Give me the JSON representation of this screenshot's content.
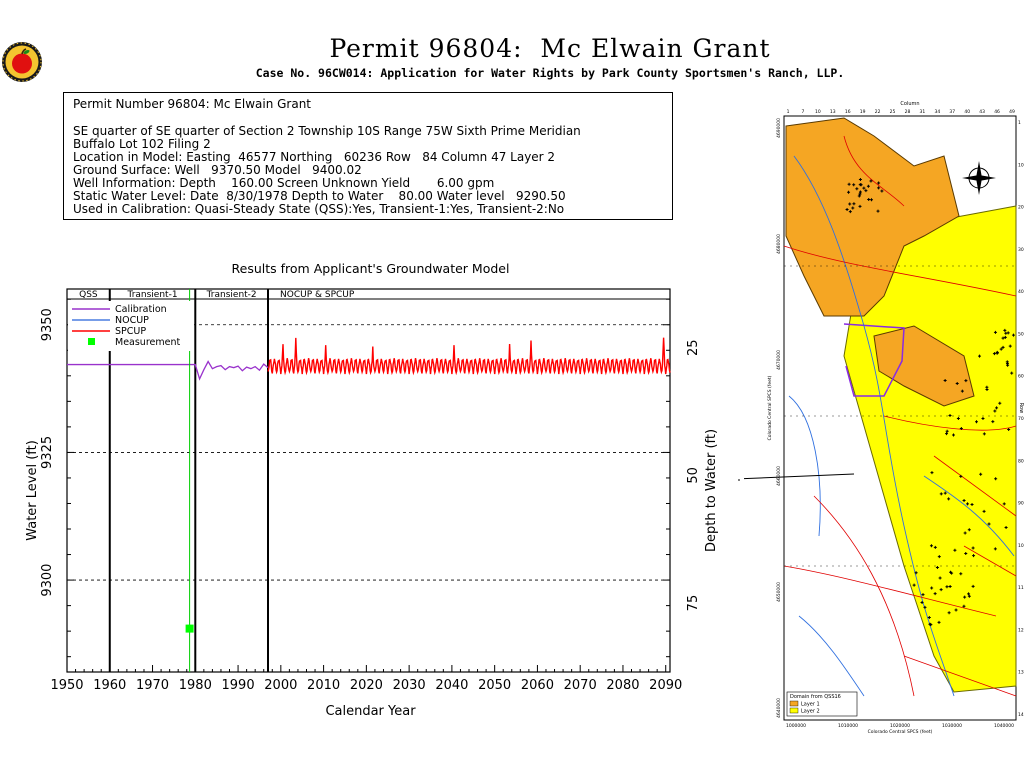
{
  "header": {
    "title": "Permit 96804:  Mc Elwain Grant",
    "subtitle": "Case No. 96CW014: Application for Water Rights by Park County Sportsmen's Ranch, LLP."
  },
  "info": {
    "line1": "Permit Number 96804: Mc Elwain Grant",
    "line2": "SE quarter of SE quarter of Section 2 Township 10S Range 75W Sixth Prime Meridian",
    "line3": "Buffalo Lot 102 Filing 2",
    "line4": "Location in Model: Easting  46577 Northing   60236 Row   84 Column 47 Layer 2",
    "line5": "Ground Surface: Well   9370.50 Model   9400.02",
    "line6": "Well Information: Depth    160.00 Screen Unknown Yield       6.00 gpm",
    "line7": "Static Water Level: Date  8/30/1978 Depth to Water    80.00 Water level   9290.50",
    "line8": "Used in Calibration: Quasi-Steady State (QSS):Yes, Transient-1:Yes, Transient-2:No"
  },
  "colors": {
    "calibration": "#9932cc",
    "nocup": "#4a7de0",
    "spcup": "#ff0000",
    "measurement": "#00ff00",
    "measurement_line": "#00cc00",
    "layer1": "#f5a623",
    "layer2": "#ffff00"
  },
  "chart_data": {
    "type": "line",
    "title": "Results from Applicant's Groundwater Model",
    "xlabel": "Calendar Year",
    "ylabel": "Water Level (ft)",
    "y2label": "Depth to Water (ft)",
    "xlim": [
      1950,
      2091
    ],
    "ylim": [
      9282,
      9357
    ],
    "x_ticks": [
      1950,
      1960,
      1970,
      1980,
      1990,
      2000,
      2010,
      2020,
      2030,
      2040,
      2050,
      2060,
      2070,
      2080,
      2090
    ],
    "y_ticks": [
      9300,
      9325,
      9350
    ],
    "y2_ticks": [
      25,
      50,
      75
    ],
    "y2_reference_surface": 9370.5,
    "grid": "dashed horizontal",
    "periods": [
      {
        "label": "QSS",
        "start": 1950,
        "end": 1960
      },
      {
        "label": "Transient-1",
        "start": 1960,
        "end": 1980
      },
      {
        "label": "Transient-2",
        "start": 1980,
        "end": 1997
      },
      {
        "label": "NOCUP  &  SPCUP",
        "start": 1997,
        "end": 2091
      }
    ],
    "legend": {
      "placement": "top-left",
      "entries": [
        "Calibration",
        "NOCUP",
        "SPCUP",
        "Measurement"
      ]
    },
    "series": [
      {
        "name": "Calibration",
        "x": [
          1950,
          1980,
          1981,
          1982,
          1983,
          1984,
          1985,
          1986,
          1987,
          1988,
          1989,
          1990,
          1991,
          1992,
          1993,
          1994,
          1995,
          1996,
          1997
        ],
        "values": [
          9342.2,
          9342.2,
          9339.4,
          9341.2,
          9342.8,
          9341.4,
          9341.8,
          9342.0,
          9341.2,
          9341.8,
          9341.6,
          9341.9,
          9341.0,
          9341.7,
          9341.4,
          9341.8,
          9341.1,
          9342.3,
          9341.6
        ]
      },
      {
        "name": "SPCUP",
        "baseline": 9340.6,
        "peak": 9343.2,
        "x_start": 1997,
        "x_end": 2091,
        "spike_years": [
          2000,
          2003,
          2010,
          2021,
          2040,
          2053,
          2058,
          2089
        ],
        "spike_values": [
          9346.2,
          9347.3,
          9346.0,
          9345.5,
          9346.0,
          9346.1,
          9346.8,
          9347.7
        ]
      },
      {
        "name": "Measurement",
        "x": [
          1978.67
        ],
        "values": [
          9290.5
        ]
      }
    ]
  },
  "minimap": {
    "legend_title": "Domain from QSS16",
    "legend_layer1": "Layer 1",
    "legend_layer2": "Layer 2",
    "x_label": "Colorado Central SPCS (feet)",
    "y_label": "Colorado Central SPCS (feet)",
    "col_label": "Column",
    "row_label": "Row",
    "x_ticks": [
      "1000000",
      "1010000",
      "1020000",
      "1030000",
      "1040000"
    ],
    "y_ticks": [
      "4690000",
      "4680000",
      "4670000",
      "4660000",
      "4650000",
      "4640000"
    ],
    "col_ticks": [
      "1",
      "7",
      "10",
      "13",
      "16",
      "19",
      "22",
      "25",
      "28",
      "31",
      "34",
      "37",
      "40",
      "43",
      "46",
      "49"
    ],
    "row_ticks": [
      "1",
      "10",
      "20",
      "30",
      "40",
      "50",
      "60",
      "70",
      "80",
      "90",
      "100",
      "110",
      "120",
      "130",
      "140"
    ]
  }
}
